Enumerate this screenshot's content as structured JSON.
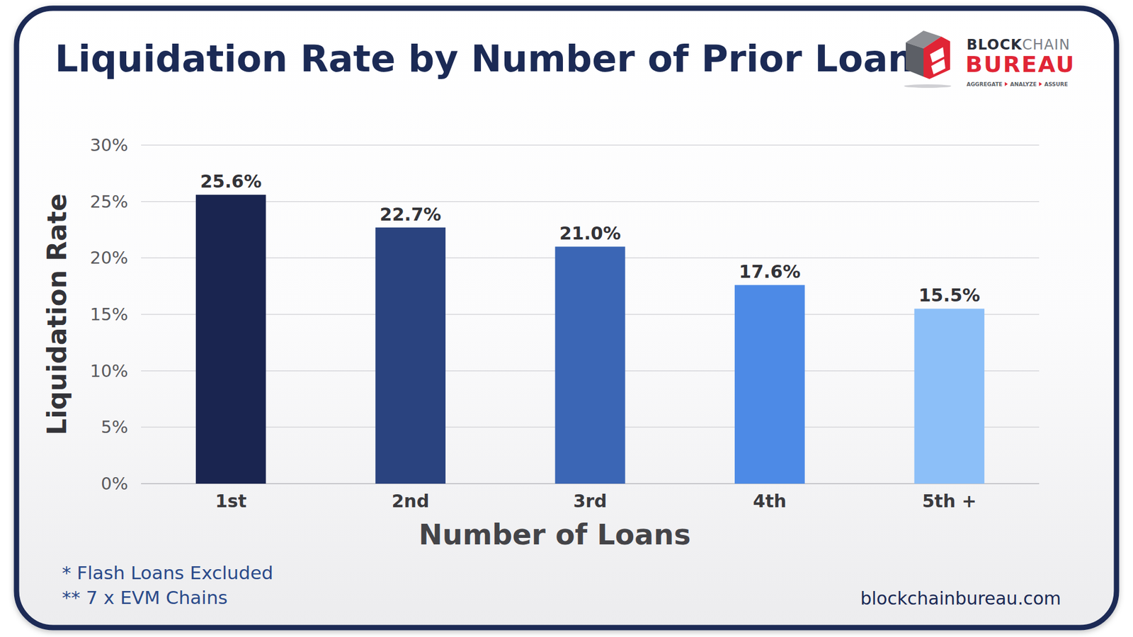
{
  "chart_data": {
    "type": "bar",
    "title": "Liquidation Rate by Number of Prior Loans",
    "x_label": "Number of Loans",
    "y_label": "Liquidation Rate",
    "categories": [
      "1st",
      "2nd",
      "3rd",
      "4th",
      "5th +"
    ],
    "values": [
      25.6,
      22.7,
      21.0,
      17.6,
      15.5
    ],
    "value_labels": [
      "25.6%",
      "22.7%",
      "21.0%",
      "17.6%",
      "15.5%"
    ],
    "colors": [
      "#1a2550",
      "#2a437f",
      "#3b66b5",
      "#4d8ae6",
      "#8cbff8"
    ],
    "ylim": [
      0,
      30
    ],
    "yticks": [
      {
        "value": 0,
        "label": "0%"
      },
      {
        "value": 5,
        "label": "5%"
      },
      {
        "value": 10,
        "label": "10%"
      },
      {
        "value": 15,
        "label": "15%"
      },
      {
        "value": 20,
        "label": "20%"
      },
      {
        "value": 25,
        "label": "25%"
      },
      {
        "value": 30,
        "label": "30%"
      }
    ],
    "grid": true,
    "data_labels": true
  },
  "footnotes": [
    "* Flash Loans Excluded",
    "** 7 x EVM Chains"
  ],
  "source": "blockchainbureau.com",
  "brand": {
    "line1": [
      "BLOCK",
      "CHAIN"
    ],
    "line2": "BUREAU",
    "tagline": [
      "AGGREGATE",
      "ANALYZE",
      "ASSURE"
    ]
  }
}
